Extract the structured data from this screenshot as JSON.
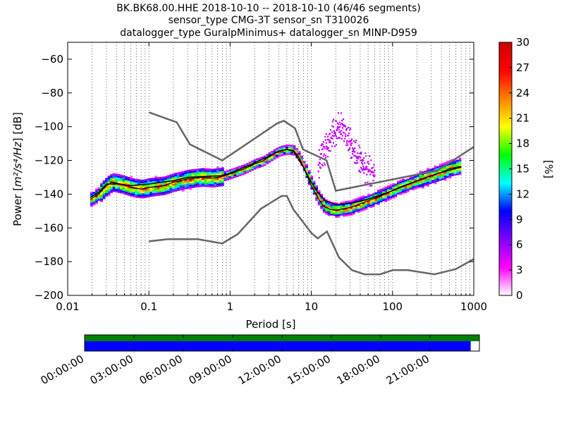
{
  "title": {
    "line1": "BK.BK68.00.HHE   2018-10-10 -- 2018-10-10  (46/46 segments)",
    "line2": "sensor_type CMG-3T sensor_sn T310026",
    "line3": "datalogger_type GuralpMinimus+ datalogger_sn MINP-D959"
  },
  "chart_data": {
    "type": "heatmap",
    "xlabel": "Period [s]",
    "ylabel_prefix": "Power [",
    "ylabel_math": "m²/s⁴/Hz",
    "ylabel_suffix": "] [dB]",
    "x_scale": "log",
    "xlim": [
      0.01,
      1000
    ],
    "ylim": [
      -200,
      -50
    ],
    "x_ticks": [
      {
        "value": 0.01,
        "label": "0.01"
      },
      {
        "value": 0.1,
        "label": "0.1"
      },
      {
        "value": 1,
        "label": "1"
      },
      {
        "value": 10,
        "label": "10"
      },
      {
        "value": 100,
        "label": "100"
      },
      {
        "value": 1000,
        "label": "1000"
      }
    ],
    "y_ticks": [
      {
        "value": -60,
        "label": "−60"
      },
      {
        "value": -80,
        "label": "−80"
      },
      {
        "value": -100,
        "label": "−100"
      },
      {
        "value": -120,
        "label": "−120"
      },
      {
        "value": -140,
        "label": "−140"
      },
      {
        "value": -160,
        "label": "−160"
      },
      {
        "value": -180,
        "label": "−180"
      },
      {
        "value": -200,
        "label": "−200"
      }
    ],
    "grid": "dotted vertical",
    "colorbar": {
      "label": "[%]",
      "min": 0,
      "max": 30,
      "ticks": [
        "0",
        "3",
        "6",
        "9",
        "12",
        "15",
        "18",
        "21",
        "24",
        "27",
        "30"
      ],
      "colormap": [
        "#ffffff",
        "#ff00ff",
        "#8000ff",
        "#0000ff",
        "#00ffff",
        "#00ff00",
        "#ffff00",
        "#ff8000",
        "#ff0000",
        "#cc0000"
      ]
    },
    "noise_models": [
      {
        "name": "NHNM",
        "color": "#666666",
        "points": [
          [
            0.1,
            -91.5
          ],
          [
            0.22,
            -97.4
          ],
          [
            0.32,
            -110.5
          ],
          [
            0.8,
            -120
          ],
          [
            3.8,
            -98
          ],
          [
            4.6,
            -96.5
          ],
          [
            6.3,
            -101
          ],
          [
            7.9,
            -113.5
          ],
          [
            15.4,
            -120
          ],
          [
            20,
            -138
          ],
          [
            354.8,
            -126
          ],
          [
            1000,
            -112
          ]
        ]
      },
      {
        "name": "NLNM",
        "color": "#666666",
        "points": [
          [
            0.1,
            -168
          ],
          [
            0.17,
            -166.7
          ],
          [
            0.4,
            -166.7
          ],
          [
            0.8,
            -169.2
          ],
          [
            1.24,
            -163.7
          ],
          [
            2.4,
            -148.6
          ],
          [
            4.3,
            -141.1
          ],
          [
            5,
            -141.1
          ],
          [
            6,
            -149
          ],
          [
            10,
            -163
          ],
          [
            12,
            -166.2
          ],
          [
            15.6,
            -162.1
          ],
          [
            21.9,
            -177.5
          ],
          [
            31.6,
            -185
          ],
          [
            45,
            -187.5
          ],
          [
            70,
            -187.5
          ],
          [
            101,
            -185
          ],
          [
            154,
            -185
          ],
          [
            328,
            -187.5
          ],
          [
            600,
            -184.4
          ],
          [
            1000,
            -178.5
          ]
        ]
      }
    ],
    "mode_curve": [
      [
        0.019,
        -143
      ],
      [
        0.024,
        -140
      ],
      [
        0.03,
        -135
      ],
      [
        0.035,
        -133
      ],
      [
        0.045,
        -134
      ],
      [
        0.06,
        -136
      ],
      [
        0.08,
        -137
      ],
      [
        0.1,
        -136
      ],
      [
        0.15,
        -135
      ],
      [
        0.2,
        -133
      ],
      [
        0.3,
        -131
      ],
      [
        0.45,
        -130
      ],
      [
        0.6,
        -130.5
      ],
      [
        0.8,
        -129.5
      ],
      [
        1,
        -128
      ],
      [
        1.5,
        -125
      ],
      [
        2,
        -122
      ],
      [
        2.5,
        -120.5
      ],
      [
        3,
        -118
      ],
      [
        3.5,
        -116
      ],
      [
        4,
        -114.5
      ],
      [
        5,
        -113.5
      ],
      [
        6,
        -114
      ],
      [
        7,
        -118
      ],
      [
        8,
        -124
      ],
      [
        10,
        -135
      ],
      [
        12,
        -142
      ],
      [
        14,
        -147
      ],
      [
        17,
        -149
      ],
      [
        20,
        -149.5
      ],
      [
        30,
        -148
      ],
      [
        50,
        -144
      ],
      [
        80,
        -140
      ],
      [
        120,
        -136
      ],
      [
        200,
        -132
      ],
      [
        300,
        -129
      ],
      [
        400,
        -127
      ],
      [
        500,
        -125
      ],
      [
        700,
        -123.5
      ]
    ],
    "mean_curve": [
      [
        0.019,
        -142
      ],
      [
        0.024,
        -139
      ],
      [
        0.03,
        -134
      ],
      [
        0.04,
        -134
      ],
      [
        0.06,
        -135
      ],
      [
        0.1,
        -134
      ],
      [
        0.2,
        -132
      ],
      [
        0.3,
        -130
      ],
      [
        0.5,
        -129.5
      ],
      [
        0.8,
        -129
      ],
      [
        1,
        -127.5
      ],
      [
        2,
        -121.5
      ],
      [
        3,
        -117.5
      ],
      [
        4,
        -114.5
      ],
      [
        5,
        -113.5
      ],
      [
        6,
        -114.5
      ],
      [
        8,
        -124
      ],
      [
        10,
        -133
      ],
      [
        12,
        -139
      ],
      [
        15,
        -144
      ],
      [
        20,
        -146
      ],
      [
        30,
        -145.5
      ],
      [
        50,
        -143
      ],
      [
        100,
        -138
      ],
      [
        200,
        -132
      ],
      [
        400,
        -127
      ],
      [
        700,
        -124
      ]
    ],
    "outlier_curve": [
      [
        12,
        -128
      ],
      [
        15,
        -118
      ],
      [
        18,
        -110
      ],
      [
        22,
        -105
      ],
      [
        28,
        -112
      ],
      [
        35,
        -122
      ],
      [
        45,
        -130
      ],
      [
        60,
        -134
      ]
    ]
  },
  "timeline": {
    "labels": [
      "00:00:00",
      "03:00:00",
      "06:00:00",
      "09:00:00",
      "12:00:00",
      "15:00:00",
      "18:00:00",
      "21:00:00"
    ],
    "data_coverage": 1.0,
    "psd_coverage": 0.978,
    "data_color": "#008000",
    "psd_color": "#0000ff"
  }
}
